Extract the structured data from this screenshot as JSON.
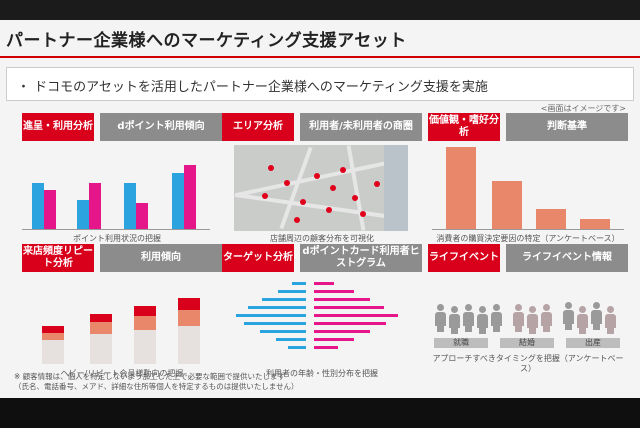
{
  "title": "パートナー企業様へのマーケティング支援アセット",
  "subtitle": "・ ドコモのアセットを活用したパートナー企業様へのマーケティング支援を実施",
  "note_right": "<画面はイメージです>",
  "colors": {
    "accent": "#d8001a",
    "bar_blue": "#2ba3df",
    "bar_pink": "#e5158a",
    "bar_orange": "#e8876a"
  },
  "panels": [
    {
      "red": "進呈・利用分析",
      "gray": "dポイント利用傾向",
      "caption": "ポイント利用状況の把握"
    },
    {
      "red": "エリア分析",
      "gray": "利用者/未利用者の商圏",
      "caption": "店舗周辺の顧客分布を可視化"
    },
    {
      "red": "価値観・嗜好分析",
      "gray": "判断基準",
      "caption": "消費者の購買決定要因の特定（アンケートベース）"
    },
    {
      "red": "来店頻度リピート分析",
      "gray": "利用傾向",
      "caption": "ヘビー/リピート会員様動向の把握"
    },
    {
      "red": "ターゲット分析",
      "gray": "dポイントカード利用者ヒストグラム",
      "caption": "利用者の年齢・性別分布を把握"
    },
    {
      "red": "ライフイベント",
      "gray": "ライフイベント情報",
      "caption": "アプローチすべきタイミングを把握（アンケートベース）"
    }
  ],
  "life_stages": [
    "就職",
    "結婚",
    "出産"
  ],
  "footnote_1": "※ 顧客情報は、個人を特定しないよう加工した上で必要な範囲で提供いたします",
  "footnote_2": "（氏名、電話番号、メアド、詳細な住所等個人を特定するものは提供いたしません）"
}
